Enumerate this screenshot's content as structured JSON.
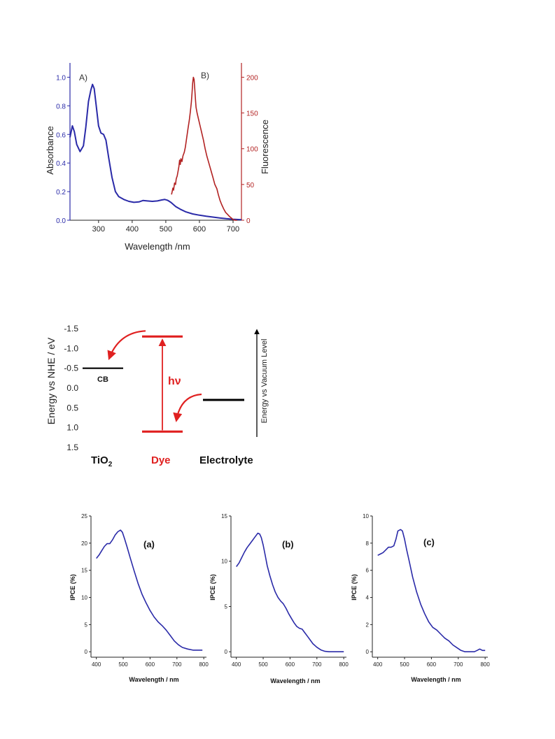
{
  "chart_data": [
    {
      "type": "line",
      "title": "",
      "xlabel": "Wavelength /nm",
      "xlim": [
        215,
        725
      ],
      "x_ticks": [
        300,
        400,
        500,
        600,
        700
      ],
      "y_left": {
        "label": "Absorbance",
        "lim": [
          0,
          1.1
        ],
        "ticks": [
          "0.0",
          "0.2",
          "0.4",
          "0.6",
          "0.8",
          "1.0"
        ],
        "color": "#2a2aa8"
      },
      "y_right": {
        "label": "Fluorescence",
        "lim": [
          0,
          220
        ],
        "ticks": [
          "0",
          "50",
          "100",
          "150",
          "200"
        ],
        "color": "#b22222"
      },
      "panel_labels": [
        "A)",
        "B)"
      ],
      "series": [
        {
          "axis": "left",
          "color": "#2a2aa8",
          "points": [
            [
              215,
              0.58
            ],
            [
              222,
              0.66
            ],
            [
              228,
              0.62
            ],
            [
              235,
              0.53
            ],
            [
              245,
              0.48
            ],
            [
              255,
              0.52
            ],
            [
              262,
              0.65
            ],
            [
              270,
              0.83
            ],
            [
              277,
              0.91
            ],
            [
              282,
              0.95
            ],
            [
              287,
              0.92
            ],
            [
              293,
              0.8
            ],
            [
              300,
              0.66
            ],
            [
              307,
              0.61
            ],
            [
              315,
              0.6
            ],
            [
              322,
              0.56
            ],
            [
              330,
              0.44
            ],
            [
              340,
              0.3
            ],
            [
              350,
              0.2
            ],
            [
              360,
              0.165
            ],
            [
              375,
              0.145
            ],
            [
              390,
              0.132
            ],
            [
              405,
              0.125
            ],
            [
              420,
              0.128
            ],
            [
              432,
              0.138
            ],
            [
              445,
              0.135
            ],
            [
              460,
              0.132
            ],
            [
              475,
              0.135
            ],
            [
              488,
              0.142
            ],
            [
              497,
              0.145
            ],
            [
              505,
              0.14
            ],
            [
              515,
              0.125
            ],
            [
              530,
              0.095
            ],
            [
              545,
              0.075
            ],
            [
              560,
              0.058
            ],
            [
              580,
              0.044
            ],
            [
              600,
              0.035
            ],
            [
              620,
              0.028
            ],
            [
              640,
              0.022
            ],
            [
              660,
              0.016
            ],
            [
              680,
              0.011
            ],
            [
              700,
              0.007
            ],
            [
              725,
              0.004
            ]
          ]
        },
        {
          "axis": "right",
          "color": "#b22222",
          "points": [
            [
              517,
              36
            ],
            [
              519,
              40
            ],
            [
              521,
              45
            ],
            [
              523,
              42
            ],
            [
              526,
              52
            ],
            [
              529,
              50
            ],
            [
              531,
              58
            ],
            [
              534,
              62
            ],
            [
              537,
              70
            ],
            [
              539,
              75
            ],
            [
              541,
              84
            ],
            [
              543,
              78
            ],
            [
              545,
              86
            ],
            [
              548,
              82
            ],
            [
              551,
              90
            ],
            [
              555,
              95
            ],
            [
              558,
              102
            ],
            [
              562,
              115
            ],
            [
              566,
              128
            ],
            [
              570,
              140
            ],
            [
              573,
              152
            ],
            [
              576,
              165
            ],
            [
              578,
              178
            ],
            [
              580,
              192
            ],
            [
              582,
              200
            ],
            [
              584,
              197
            ],
            [
              586,
              185
            ],
            [
              588,
              170
            ],
            [
              590,
              158
            ],
            [
              593,
              150
            ],
            [
              597,
              142
            ],
            [
              602,
              132
            ],
            [
              607,
              122
            ],
            [
              612,
              112
            ],
            [
              617,
              100
            ],
            [
              622,
              90
            ],
            [
              628,
              80
            ],
            [
              634,
              70
            ],
            [
              640,
              60
            ],
            [
              646,
              50
            ],
            [
              652,
              44
            ],
            [
              656,
              36
            ],
            [
              661,
              28
            ],
            [
              666,
              22
            ],
            [
              672,
              16
            ],
            [
              678,
              11
            ],
            [
              684,
              8
            ],
            [
              690,
              5
            ],
            [
              695,
              3
            ],
            [
              700,
              1
            ],
            [
              706,
              0
            ],
            [
              712,
              0
            ]
          ]
        }
      ]
    },
    {
      "type": "diagram",
      "ylabel": "Energy vs NHE / eV",
      "ylim": [
        -1.5,
        1.5
      ],
      "y_ticks": [
        "-1.5",
        "-1.0",
        "-0.5",
        "0.0",
        "0.5",
        "1.0",
        "1.5"
      ],
      "right_axis_label": "Energy vs Vacuum Level",
      "labels": {
        "tio2": "TiO",
        "tio2_sub": "2",
        "dye": "Dye",
        "electrolyte": "Electrolyte",
        "cb": "CB",
        "hv": "hν"
      },
      "levels": [
        {
          "name": "tio2-cb",
          "energy": -0.5,
          "color": "#000000"
        },
        {
          "name": "dye-lumo",
          "energy": -1.3,
          "color": "#e02020"
        },
        {
          "name": "dye-homo",
          "energy": 1.1,
          "color": "#e02020"
        },
        {
          "name": "electrolyte",
          "energy": 0.3,
          "color": "#000000"
        }
      ]
    },
    {
      "type": "line",
      "panel_label": "(a)",
      "xlabel": "Wavelength  /  nm",
      "ylabel": "IPCE (%)",
      "xlim": [
        380,
        810
      ],
      "ylim": [
        -1,
        25
      ],
      "x_ticks": [
        400,
        500,
        600,
        700,
        800
      ],
      "y_ticks": [
        0,
        5,
        10,
        15,
        20,
        25
      ],
      "color": "#2a2aa8",
      "points": [
        [
          400,
          17.2
        ],
        [
          410,
          17.8
        ],
        [
          420,
          18.6
        ],
        [
          430,
          19.4
        ],
        [
          440,
          19.9
        ],
        [
          450,
          19.9
        ],
        [
          460,
          20.6
        ],
        [
          470,
          21.5
        ],
        [
          480,
          22.1
        ],
        [
          490,
          22.4
        ],
        [
          497,
          22.0
        ],
        [
          505,
          20.8
        ],
        [
          515,
          19.2
        ],
        [
          525,
          17.5
        ],
        [
          540,
          15.0
        ],
        [
          555,
          12.6
        ],
        [
          570,
          10.6
        ],
        [
          585,
          9.0
        ],
        [
          600,
          7.6
        ],
        [
          615,
          6.4
        ],
        [
          630,
          5.5
        ],
        [
          645,
          4.8
        ],
        [
          660,
          4.0
        ],
        [
          675,
          3.0
        ],
        [
          690,
          2.0
        ],
        [
          705,
          1.3
        ],
        [
          720,
          0.8
        ],
        [
          740,
          0.5
        ],
        [
          760,
          0.3
        ],
        [
          780,
          0.3
        ],
        [
          795,
          0.3
        ]
      ]
    },
    {
      "type": "line",
      "panel_label": "(b)",
      "xlabel": "Wavelength  /  nm",
      "ylabel": "IPCE (%)",
      "xlim": [
        380,
        810
      ],
      "ylim": [
        -0.6,
        15
      ],
      "x_ticks": [
        400,
        500,
        600,
        700,
        800
      ],
      "y_ticks": [
        0,
        5,
        10,
        15
      ],
      "color": "#2a2aa8",
      "points": [
        [
          400,
          9.4
        ],
        [
          410,
          9.8
        ],
        [
          420,
          10.4
        ],
        [
          430,
          11.0
        ],
        [
          440,
          11.5
        ],
        [
          450,
          11.9
        ],
        [
          460,
          12.3
        ],
        [
          470,
          12.7
        ],
        [
          480,
          13.1
        ],
        [
          487,
          13.0
        ],
        [
          493,
          12.6
        ],
        [
          500,
          11.8
        ],
        [
          508,
          10.6
        ],
        [
          515,
          9.5
        ],
        [
          525,
          8.4
        ],
        [
          535,
          7.4
        ],
        [
          545,
          6.6
        ],
        [
          555,
          6.0
        ],
        [
          565,
          5.6
        ],
        [
          575,
          5.3
        ],
        [
          585,
          4.8
        ],
        [
          595,
          4.2
        ],
        [
          605,
          3.7
        ],
        [
          615,
          3.2
        ],
        [
          625,
          2.8
        ],
        [
          635,
          2.6
        ],
        [
          645,
          2.5
        ],
        [
          655,
          2.1
        ],
        [
          665,
          1.7
        ],
        [
          675,
          1.3
        ],
        [
          685,
          0.9
        ],
        [
          700,
          0.5
        ],
        [
          715,
          0.2
        ],
        [
          730,
          0.05
        ],
        [
          745,
          0
        ],
        [
          770,
          0
        ],
        [
          800,
          0
        ]
      ]
    },
    {
      "type": "line",
      "panel_label": "(c)",
      "xlabel": "Wavelength  /  nm",
      "ylabel": "IPCE (%)",
      "xlim": [
        380,
        810
      ],
      "ylim": [
        -0.4,
        10
      ],
      "x_ticks": [
        400,
        500,
        600,
        700,
        800
      ],
      "y_ticks": [
        0,
        2,
        4,
        6,
        8,
        10
      ],
      "color": "#2a2aa8",
      "points": [
        [
          400,
          7.1
        ],
        [
          410,
          7.2
        ],
        [
          420,
          7.3
        ],
        [
          430,
          7.5
        ],
        [
          440,
          7.7
        ],
        [
          450,
          7.7
        ],
        [
          460,
          7.8
        ],
        [
          468,
          8.3
        ],
        [
          475,
          8.9
        ],
        [
          485,
          9.0
        ],
        [
          492,
          8.9
        ],
        [
          500,
          8.3
        ],
        [
          508,
          7.5
        ],
        [
          518,
          6.6
        ],
        [
          530,
          5.5
        ],
        [
          545,
          4.4
        ],
        [
          560,
          3.5
        ],
        [
          575,
          2.8
        ],
        [
          590,
          2.2
        ],
        [
          605,
          1.8
        ],
        [
          620,
          1.6
        ],
        [
          635,
          1.3
        ],
        [
          650,
          1.0
        ],
        [
          665,
          0.8
        ],
        [
          680,
          0.5
        ],
        [
          695,
          0.3
        ],
        [
          710,
          0.1
        ],
        [
          725,
          0.0
        ],
        [
          745,
          0.0
        ],
        [
          760,
          0.0
        ],
        [
          770,
          0.1
        ],
        [
          780,
          0.2
        ],
        [
          790,
          0.1
        ],
        [
          800,
          0.1
        ]
      ]
    }
  ]
}
